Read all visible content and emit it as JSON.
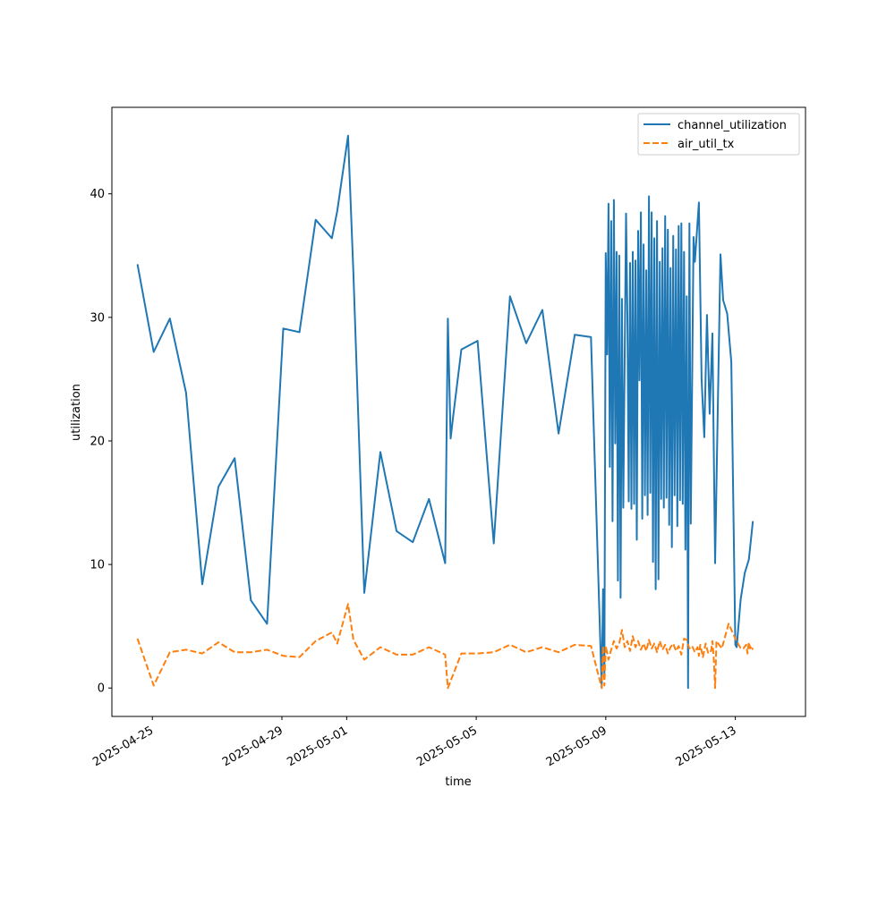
{
  "chart_data": {
    "type": "line",
    "title": "",
    "xlabel": "time",
    "ylabel": "utilization",
    "x_ticks": [
      "2025-04-25",
      "2025-04-29",
      "2025-05-01",
      "2025-05-05",
      "2025-05-09",
      "2025-05-13"
    ],
    "y_ticks": [
      "0",
      "10",
      "20",
      "30",
      "40"
    ],
    "xlim": [
      "2025-04-23 18:00",
      "2025-05-15 04:00"
    ],
    "ylim": [
      -2.3,
      47
    ],
    "grid": false,
    "legend_position": "upper right",
    "colors": {
      "channel_utilization": "#1f77b4",
      "air_util_tx": "#ff7f0e"
    },
    "series": [
      {
        "name": "channel_utilization",
        "style": "solid",
        "points": [
          [
            "2025-04-24 13:00",
            34.3
          ],
          [
            "2025-04-25 01:00",
            27.2
          ],
          [
            "2025-04-25 13:00",
            29.9
          ],
          [
            "2025-04-26 01:00",
            23.9
          ],
          [
            "2025-04-26 13:00",
            8.4
          ],
          [
            "2025-04-27 01:00",
            16.3
          ],
          [
            "2025-04-27 13:00",
            18.6
          ],
          [
            "2025-04-28 01:00",
            7.1
          ],
          [
            "2025-04-28 13:00",
            5.2
          ],
          [
            "2025-04-29 01:00",
            29.1
          ],
          [
            "2025-04-29 13:00",
            28.8
          ],
          [
            "2025-04-30 01:00",
            37.9
          ],
          [
            "2025-04-30 13:00",
            36.4
          ],
          [
            "2025-04-30 17:00",
            38.6
          ],
          [
            "2025-05-01 01:00",
            44.7
          ],
          [
            "2025-05-01 05:00",
            33.5
          ],
          [
            "2025-05-01 13:00",
            7.7
          ],
          [
            "2025-05-02 01:00",
            19.1
          ],
          [
            "2025-05-02 13:00",
            12.7
          ],
          [
            "2025-05-03 01:00",
            11.8
          ],
          [
            "2025-05-03 13:00",
            15.3
          ],
          [
            "2025-05-04 01:00",
            10.1
          ],
          [
            "2025-05-04 03:00",
            29.9
          ],
          [
            "2025-05-04 05:00",
            20.2
          ],
          [
            "2025-05-04 07:00",
            22.1
          ],
          [
            "2025-05-04 13:00",
            27.4
          ],
          [
            "2025-05-05 01:00",
            28.1
          ],
          [
            "2025-05-05 13:00",
            11.7
          ],
          [
            "2025-05-06 01:00",
            31.7
          ],
          [
            "2025-05-06 13:00",
            27.9
          ],
          [
            "2025-05-07 01:00",
            30.6
          ],
          [
            "2025-05-07 13:00",
            20.6
          ],
          [
            "2025-05-08 01:00",
            28.6
          ],
          [
            "2025-05-08 13:00",
            28.4
          ],
          [
            "2025-05-08 21:00",
            0.0
          ],
          [
            "2025-05-08 22:00",
            8.0
          ],
          [
            "2025-05-08 23:00",
            1.2
          ],
          [
            "2025-05-09 00:00",
            35.2
          ],
          [
            "2025-05-09 01:00",
            27.0
          ],
          [
            "2025-05-09 02:00",
            39.2
          ],
          [
            "2025-05-09 03:00",
            17.9
          ],
          [
            "2025-05-09 04:00",
            37.8
          ],
          [
            "2025-05-09 05:00",
            13.5
          ],
          [
            "2025-05-09 06:00",
            39.5
          ],
          [
            "2025-05-09 07:00",
            19.8
          ],
          [
            "2025-05-09 08:00",
            35.3
          ],
          [
            "2025-05-09 09:00",
            8.7
          ],
          [
            "2025-05-09 10:00",
            35.0
          ],
          [
            "2025-05-09 11:00",
            7.3
          ],
          [
            "2025-05-09 12:00",
            31.5
          ],
          [
            "2025-05-09 13:00",
            14.6
          ],
          [
            "2025-05-09 15:00",
            38.4
          ],
          [
            "2025-05-09 16:00",
            30.1
          ],
          [
            "2025-05-09 17:00",
            15.1
          ],
          [
            "2025-05-09 18:00",
            34.4
          ],
          [
            "2025-05-09 19:00",
            14.5
          ],
          [
            "2025-05-09 20:00",
            35.3
          ],
          [
            "2025-05-09 21:00",
            14.9
          ],
          [
            "2025-05-09 22:00",
            34.6
          ],
          [
            "2025-05-09 23:00",
            12.0
          ],
          [
            "2025-05-10 00:00",
            37.0
          ],
          [
            "2025-05-10 01:00",
            24.9
          ],
          [
            "2025-05-10 02:00",
            38.5
          ],
          [
            "2025-05-10 03:00",
            13.7
          ],
          [
            "2025-05-10 04:00",
            35.9
          ],
          [
            "2025-05-10 05:00",
            15.6
          ],
          [
            "2025-05-10 06:00",
            33.8
          ],
          [
            "2025-05-10 07:00",
            14.0
          ],
          [
            "2025-05-10 08:00",
            39.8
          ],
          [
            "2025-05-10 09:00",
            15.8
          ],
          [
            "2025-05-10 10:00",
            38.5
          ],
          [
            "2025-05-10 11:00",
            10.2
          ],
          [
            "2025-05-10 12:00",
            36.4
          ],
          [
            "2025-05-10 13:00",
            8.0
          ],
          [
            "2025-05-10 14:00",
            37.8
          ],
          [
            "2025-05-10 15:00",
            8.8
          ],
          [
            "2025-05-10 16:00",
            34.5
          ],
          [
            "2025-05-10 17:00",
            15.3
          ],
          [
            "2025-05-10 18:00",
            35.6
          ],
          [
            "2025-05-10 19:00",
            14.6
          ],
          [
            "2025-05-10 20:00",
            38.2
          ],
          [
            "2025-05-10 21:00",
            15.4
          ],
          [
            "2025-05-10 22:00",
            37.1
          ],
          [
            "2025-05-10 23:00",
            13.2
          ],
          [
            "2025-05-11 00:00",
            34.0
          ],
          [
            "2025-05-11 01:00",
            11.4
          ],
          [
            "2025-05-11 02:00",
            36.6
          ],
          [
            "2025-05-11 03:00",
            15.6
          ],
          [
            "2025-05-11 04:00",
            35.5
          ],
          [
            "2025-05-11 05:00",
            13.1
          ],
          [
            "2025-05-11 06:00",
            37.4
          ],
          [
            "2025-05-11 07:00",
            15.2
          ],
          [
            "2025-05-11 08:00",
            37.6
          ],
          [
            "2025-05-11 09:00",
            14.9
          ],
          [
            "2025-05-11 10:00",
            35.3
          ],
          [
            "2025-05-11 11:00",
            11.2
          ],
          [
            "2025-05-11 12:00",
            31.7
          ],
          [
            "2025-05-11 13:00",
            0.0
          ],
          [
            "2025-05-11 14:00",
            37.6
          ],
          [
            "2025-05-11 15:00",
            13.3
          ],
          [
            "2025-05-11 17:00",
            36.5
          ],
          [
            "2025-05-11 18:00",
            34.5
          ],
          [
            "2025-05-11 21:00",
            39.3
          ],
          [
            "2025-05-11 23:00",
            25.0
          ],
          [
            "2025-05-12 01:00",
            20.3
          ],
          [
            "2025-05-12 03:00",
            30.2
          ],
          [
            "2025-05-12 05:00",
            22.2
          ],
          [
            "2025-05-12 07:00",
            28.7
          ],
          [
            "2025-05-12 09:00",
            10.1
          ],
          [
            "2025-05-12 13:00",
            35.1
          ],
          [
            "2025-05-12 15:00",
            31.4
          ],
          [
            "2025-05-12 18:00",
            30.3
          ],
          [
            "2025-05-12 21:00",
            26.4
          ],
          [
            "2025-05-13 00:00",
            3.5
          ],
          [
            "2025-05-13 01:00",
            3.3
          ],
          [
            "2025-05-13 04:00",
            7.2
          ],
          [
            "2025-05-13 07:00",
            9.3
          ],
          [
            "2025-05-13 10:00",
            10.4
          ],
          [
            "2025-05-13 13:00",
            13.5
          ]
        ]
      },
      {
        "name": "air_util_tx",
        "style": "dashed",
        "points": [
          [
            "2025-04-24 13:00",
            4.0
          ],
          [
            "2025-04-25 01:00",
            0.2
          ],
          [
            "2025-04-25 13:00",
            2.9
          ],
          [
            "2025-04-26 01:00",
            3.1
          ],
          [
            "2025-04-26 13:00",
            2.8
          ],
          [
            "2025-04-27 01:00",
            3.7
          ],
          [
            "2025-04-27 13:00",
            2.9
          ],
          [
            "2025-04-28 01:00",
            2.9
          ],
          [
            "2025-04-28 13:00",
            3.1
          ],
          [
            "2025-04-29 01:00",
            2.6
          ],
          [
            "2025-04-29 13:00",
            2.5
          ],
          [
            "2025-04-30 01:00",
            3.8
          ],
          [
            "2025-04-30 13:00",
            4.5
          ],
          [
            "2025-04-30 17:00",
            3.6
          ],
          [
            "2025-05-01 01:00",
            6.8
          ],
          [
            "2025-05-01 05:00",
            3.9
          ],
          [
            "2025-05-01 13:00",
            2.3
          ],
          [
            "2025-05-02 01:00",
            3.3
          ],
          [
            "2025-05-02 13:00",
            2.7
          ],
          [
            "2025-05-03 01:00",
            2.7
          ],
          [
            "2025-05-03 13:00",
            3.3
          ],
          [
            "2025-05-04 01:00",
            2.7
          ],
          [
            "2025-05-04 03:00",
            0.0
          ],
          [
            "2025-05-04 13:00",
            2.8
          ],
          [
            "2025-05-05 01:00",
            2.8
          ],
          [
            "2025-05-05 13:00",
            2.9
          ],
          [
            "2025-05-06 01:00",
            3.5
          ],
          [
            "2025-05-06 13:00",
            2.9
          ],
          [
            "2025-05-07 01:00",
            3.3
          ],
          [
            "2025-05-07 13:00",
            2.9
          ],
          [
            "2025-05-08 01:00",
            3.5
          ],
          [
            "2025-05-08 13:00",
            3.4
          ],
          [
            "2025-05-08 21:00",
            0.0
          ],
          [
            "2025-05-08 22:00",
            3.4
          ],
          [
            "2025-05-08 23:00",
            0.2
          ],
          [
            "2025-05-09 00:00",
            3.4
          ],
          [
            "2025-05-09 02:00",
            2.3
          ],
          [
            "2025-05-09 04:00",
            3.1
          ],
          [
            "2025-05-09 06:00",
            3.8
          ],
          [
            "2025-05-09 08:00",
            3.2
          ],
          [
            "2025-05-09 10:00",
            3.6
          ],
          [
            "2025-05-09 12:00",
            4.7
          ],
          [
            "2025-05-09 14:00",
            3.3
          ],
          [
            "2025-05-09 16:00",
            3.8
          ],
          [
            "2025-05-09 18:00",
            3.0
          ],
          [
            "2025-05-09 20:00",
            4.2
          ],
          [
            "2025-05-09 22:00",
            3.3
          ],
          [
            "2025-05-10 00:00",
            3.8
          ],
          [
            "2025-05-10 02:00",
            3.1
          ],
          [
            "2025-05-10 04:00",
            3.6
          ],
          [
            "2025-05-10 06:00",
            3.0
          ],
          [
            "2025-05-10 08:00",
            3.9
          ],
          [
            "2025-05-10 10:00",
            3.2
          ],
          [
            "2025-05-10 12:00",
            3.6
          ],
          [
            "2025-05-10 14:00",
            2.9
          ],
          [
            "2025-05-10 16:00",
            3.8
          ],
          [
            "2025-05-10 18:00",
            3.1
          ],
          [
            "2025-05-10 20:00",
            3.5
          ],
          [
            "2025-05-10 22:00",
            2.8
          ],
          [
            "2025-05-11 00:00",
            3.3
          ],
          [
            "2025-05-11 02:00",
            3.6
          ],
          [
            "2025-05-11 04:00",
            3.0
          ],
          [
            "2025-05-11 06:00",
            3.4
          ],
          [
            "2025-05-11 08:00",
            2.7
          ],
          [
            "2025-05-11 10:00",
            4.0
          ],
          [
            "2025-05-11 12:00",
            3.9
          ],
          [
            "2025-05-11 14:00",
            3.2
          ],
          [
            "2025-05-11 16:00",
            3.4
          ],
          [
            "2025-05-11 18:00",
            2.9
          ],
          [
            "2025-05-11 20:00",
            3.3
          ],
          [
            "2025-05-11 21:00",
            2.6
          ],
          [
            "2025-05-11 22:00",
            3.5
          ],
          [
            "2025-05-12 00:00",
            2.5
          ],
          [
            "2025-05-12 02:00",
            3.6
          ],
          [
            "2025-05-12 04:00",
            2.8
          ],
          [
            "2025-05-12 06:00",
            3.0
          ],
          [
            "2025-05-12 07:00",
            3.8
          ],
          [
            "2025-05-12 08:00",
            2.4
          ],
          [
            "2025-05-12 09:00",
            0.0
          ],
          [
            "2025-05-12 10:00",
            3.8
          ],
          [
            "2025-05-12 14:00",
            3.2
          ],
          [
            "2025-05-12 19:00",
            5.2
          ],
          [
            "2025-05-13 00:00",
            4.0
          ],
          [
            "2025-05-13 02:00",
            3.6
          ],
          [
            "2025-05-13 04:00",
            3.2
          ],
          [
            "2025-05-13 06:00",
            3.2
          ],
          [
            "2025-05-13 08:00",
            3.5
          ],
          [
            "2025-05-13 09:00",
            2.8
          ],
          [
            "2025-05-13 10:00",
            3.7
          ],
          [
            "2025-05-13 11:00",
            3.2
          ],
          [
            "2025-05-13 12:00",
            3.4
          ],
          [
            "2025-05-13 13:00",
            3.1
          ]
        ]
      }
    ]
  }
}
